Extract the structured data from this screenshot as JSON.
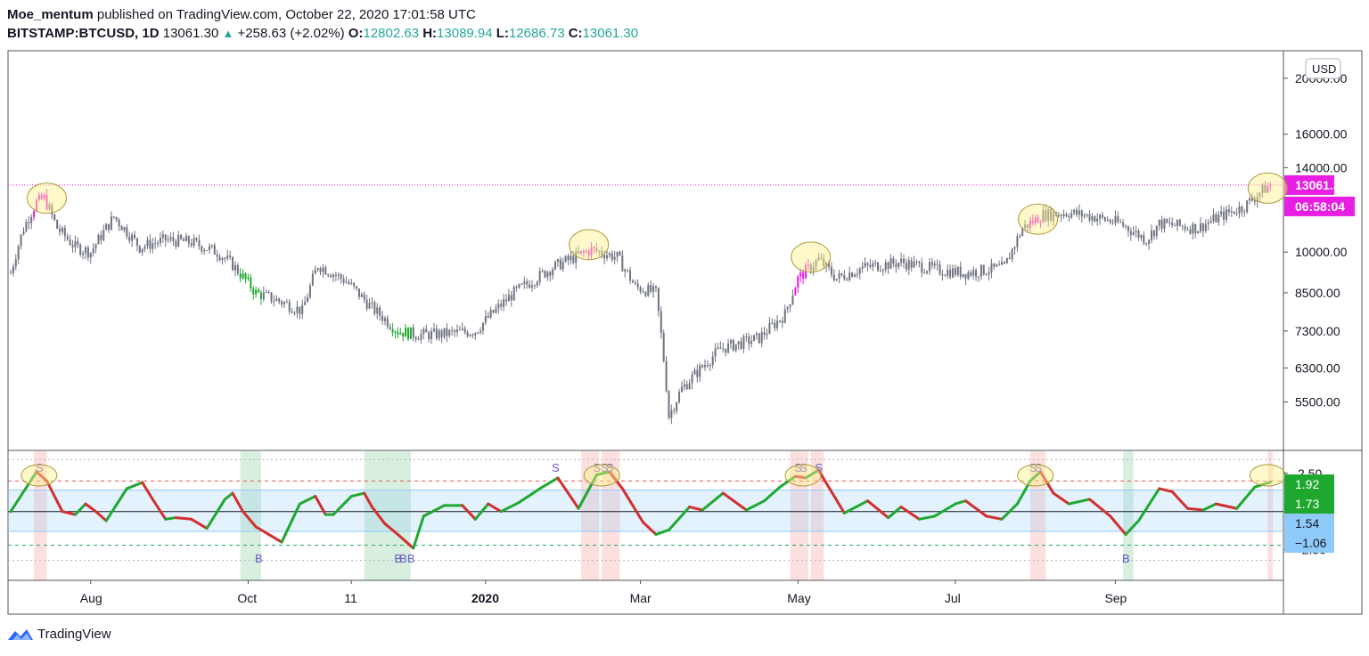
{
  "header": {
    "author": "Moe_mentum",
    "published": "published on TradingView.com, October 22, 2020 17:01:58 UTC",
    "symbol": "BITSTAMP:BTCUSD, 1D",
    "last": "13061.30",
    "arrow": "▲",
    "change": "+258.63 (+2.02%)",
    "o_label": "O:",
    "o": "12802.63",
    "h_label": "H:",
    "h": "13089.94",
    "l_label": "L:",
    "l": "12686.73",
    "c_label": "C:",
    "c": "13061.30"
  },
  "footer": {
    "brand": "TradingView"
  },
  "colors": {
    "accent": "#e91ee3",
    "green": "#1fa82f",
    "blue": "#90caf9",
    "up": "#26a69a"
  },
  "chart_data": [
    {
      "type": "candlestick",
      "title": "BITSTAMP:BTCUSD, 1D",
      "currency": "USD",
      "scale": "log",
      "ylim": [
        4600,
        22000
      ],
      "y_ticks": [
        {
          "value": 20000,
          "label": "20000.00"
        },
        {
          "value": 16000,
          "label": "16000.00"
        },
        {
          "value": 14000,
          "label": "14000.00"
        },
        {
          "value": 10000,
          "label": "10000.00"
        },
        {
          "value": 8500,
          "label": "8500.00"
        },
        {
          "value": 7300,
          "label": "7300.00"
        },
        {
          "value": 6300,
          "label": "6300.00"
        },
        {
          "value": 5500,
          "label": "5500.00"
        }
      ],
      "x_ticks": [
        "Aug",
        "Oct",
        "11",
        "2020",
        "Mar",
        "May",
        "Jul",
        "Sep"
      ],
      "x_tick_days": [
        31,
        92,
        132,
        184,
        244,
        305,
        366,
        428
      ],
      "price_path": [
        [
          0,
          9200
        ],
        [
          5,
          11000
        ],
        [
          10,
          12200
        ],
        [
          13,
          12400
        ],
        [
          18,
          11000
        ],
        [
          25,
          10200
        ],
        [
          31,
          10000
        ],
        [
          40,
          11500
        ],
        [
          50,
          10200
        ],
        [
          60,
          10500
        ],
        [
          70,
          10400
        ],
        [
          80,
          10000
        ],
        [
          86,
          9500
        ],
        [
          95,
          8500
        ],
        [
          105,
          8200
        ],
        [
          113,
          7900
        ],
        [
          119,
          9500
        ],
        [
          130,
          8900
        ],
        [
          140,
          8000
        ],
        [
          150,
          7300
        ],
        [
          157,
          7200
        ],
        [
          165,
          7200
        ],
        [
          180,
          7300
        ],
        [
          195,
          8500
        ],
        [
          210,
          9400
        ],
        [
          225,
          10100
        ],
        [
          235,
          9800
        ],
        [
          242,
          8700
        ],
        [
          250,
          8500
        ],
        [
          255,
          5200
        ],
        [
          260,
          5800
        ],
        [
          275,
          6800
        ],
        [
          290,
          7100
        ],
        [
          300,
          7800
        ],
        [
          305,
          9000
        ],
        [
          313,
          9700
        ],
        [
          320,
          9000
        ],
        [
          330,
          9400
        ],
        [
          345,
          9600
        ],
        [
          360,
          9300
        ],
        [
          370,
          9200
        ],
        [
          385,
          9400
        ],
        [
          392,
          11000
        ],
        [
          400,
          11600
        ],
        [
          410,
          11700
        ],
        [
          420,
          11500
        ],
        [
          430,
          11200
        ],
        [
          440,
          10500
        ],
        [
          445,
          11200
        ],
        [
          460,
          11000
        ],
        [
          468,
          11500
        ],
        [
          478,
          12000
        ],
        [
          485,
          12800
        ],
        [
          488,
          13061.3
        ]
      ],
      "last_price": {
        "value": 13061.3,
        "label": "13061.30",
        "timer": "06:58:04"
      },
      "highlighted_tops": [
        {
          "day": 14,
          "price": 12400
        },
        {
          "day": 224,
          "price": 10300
        },
        {
          "day": 310,
          "price": 9800
        },
        {
          "day": 398,
          "price": 11400
        },
        {
          "day": 487,
          "price": 12900
        }
      ]
    },
    {
      "type": "line",
      "title": "Oscillator",
      "ylim": [
        -4.5,
        4.0
      ],
      "y_ticks": [
        {
          "value": 2.5,
          "label": "2.50"
        },
        {
          "value": -2.5,
          "label": "-2.50"
        }
      ],
      "upper_level": 2.0,
      "lower_level": -2.2,
      "zero_line": 0,
      "osc_path": [
        [
          0,
          0
        ],
        [
          10,
          2.6
        ],
        [
          14,
          2.0
        ],
        [
          20,
          0
        ],
        [
          25,
          -0.2
        ],
        [
          29,
          0.5
        ],
        [
          33,
          0
        ],
        [
          37,
          -0.6
        ],
        [
          45,
          1.5
        ],
        [
          51,
          1.9
        ],
        [
          55,
          0.8
        ],
        [
          60,
          -0.5
        ],
        [
          64,
          -0.4
        ],
        [
          70,
          -0.5
        ],
        [
          76,
          -1.1
        ],
        [
          83,
          0.8
        ],
        [
          86,
          1.2
        ],
        [
          90,
          0
        ],
        [
          95,
          -1.0
        ],
        [
          100,
          -1.5
        ],
        [
          105,
          -2.0
        ],
        [
          112,
          0.5
        ],
        [
          118,
          1.0
        ],
        [
          122,
          -0.2
        ],
        [
          125,
          -0.2
        ],
        [
          132,
          1.0
        ],
        [
          137,
          1.2
        ],
        [
          140,
          0.3
        ],
        [
          145,
          -0.8
        ],
        [
          150,
          -1.5
        ],
        [
          156,
          -2.4
        ],
        [
          160,
          -0.3
        ],
        [
          168,
          0.4
        ],
        [
          175,
          0.4
        ],
        [
          180,
          -0.5
        ],
        [
          185,
          0.5
        ],
        [
          190,
          0
        ],
        [
          197,
          0.6
        ],
        [
          205,
          1.5
        ],
        [
          212,
          2.2
        ],
        [
          220,
          0.2
        ],
        [
          227,
          2.4
        ],
        [
          232,
          2.6
        ],
        [
          237,
          1.5
        ],
        [
          245,
          -0.7
        ],
        [
          250,
          -1.5
        ],
        [
          255,
          -1.2
        ],
        [
          263,
          0.3
        ],
        [
          268,
          0.1
        ],
        [
          276,
          1.2
        ],
        [
          285,
          0.1
        ],
        [
          292,
          0.7
        ],
        [
          298,
          1.6
        ],
        [
          304,
          2.3
        ],
        [
          308,
          2.2
        ],
        [
          313,
          2.7
        ],
        [
          318,
          1.3
        ],
        [
          323,
          -0.1
        ],
        [
          332,
          0.7
        ],
        [
          340,
          -0.4
        ],
        [
          345,
          0.3
        ],
        [
          352,
          -0.5
        ],
        [
          358,
          -0.3
        ],
        [
          366,
          0.5
        ],
        [
          370,
          0.7
        ],
        [
          378,
          -0.3
        ],
        [
          384,
          -0.5
        ],
        [
          390,
          0.5
        ],
        [
          395,
          2.0
        ],
        [
          399,
          2.6
        ],
        [
          404,
          1.2
        ],
        [
          410,
          0.5
        ],
        [
          418,
          0.8
        ],
        [
          426,
          -0.3
        ],
        [
          432,
          -1.5
        ],
        [
          437,
          -0.6
        ],
        [
          445,
          1.5
        ],
        [
          450,
          1.3
        ],
        [
          456,
          0.2
        ],
        [
          462,
          0.1
        ],
        [
          467,
          0.5
        ],
        [
          475,
          0.2
        ],
        [
          482,
          1.6
        ],
        [
          488,
          1.92
        ]
      ],
      "readouts": [
        {
          "label": "1.92",
          "color": "#1fa82f"
        },
        {
          "label": "1.73",
          "color": "#1fa82f"
        },
        {
          "label": "1.54",
          "color": "#90caf9"
        },
        {
          "label": "−1.06",
          "color": "#90caf9"
        }
      ],
      "sell_zones": [
        [
          9,
          14
        ],
        [
          221,
          228
        ],
        [
          229,
          236
        ],
        [
          302,
          309
        ],
        [
          310,
          315
        ],
        [
          395,
          401
        ],
        [
          487,
          489
        ]
      ],
      "buy_zones": [
        [
          89,
          97
        ],
        [
          137,
          155
        ],
        [
          431,
          435
        ]
      ],
      "signals": [
        {
          "day": 11,
          "label": "S"
        },
        {
          "day": 211,
          "label": "S"
        },
        {
          "day": 227,
          "label": "S"
        },
        {
          "day": 230,
          "label": "S"
        },
        {
          "day": 232,
          "label": "S"
        },
        {
          "day": 305,
          "label": "S"
        },
        {
          "day": 307,
          "label": "S"
        },
        {
          "day": 313,
          "label": "S"
        },
        {
          "day": 396,
          "label": "S"
        },
        {
          "day": 398,
          "label": "S"
        },
        {
          "day": 96,
          "label": "B"
        },
        {
          "day": 150,
          "label": "B"
        },
        {
          "day": 152,
          "label": "B"
        },
        {
          "day": 155,
          "label": "B"
        },
        {
          "day": 432,
          "label": "B"
        }
      ],
      "highlighted_tops": [
        {
          "day": 11
        },
        {
          "day": 229
        },
        {
          "day": 307
        },
        {
          "day": 397
        },
        {
          "day": 487
        }
      ]
    }
  ]
}
